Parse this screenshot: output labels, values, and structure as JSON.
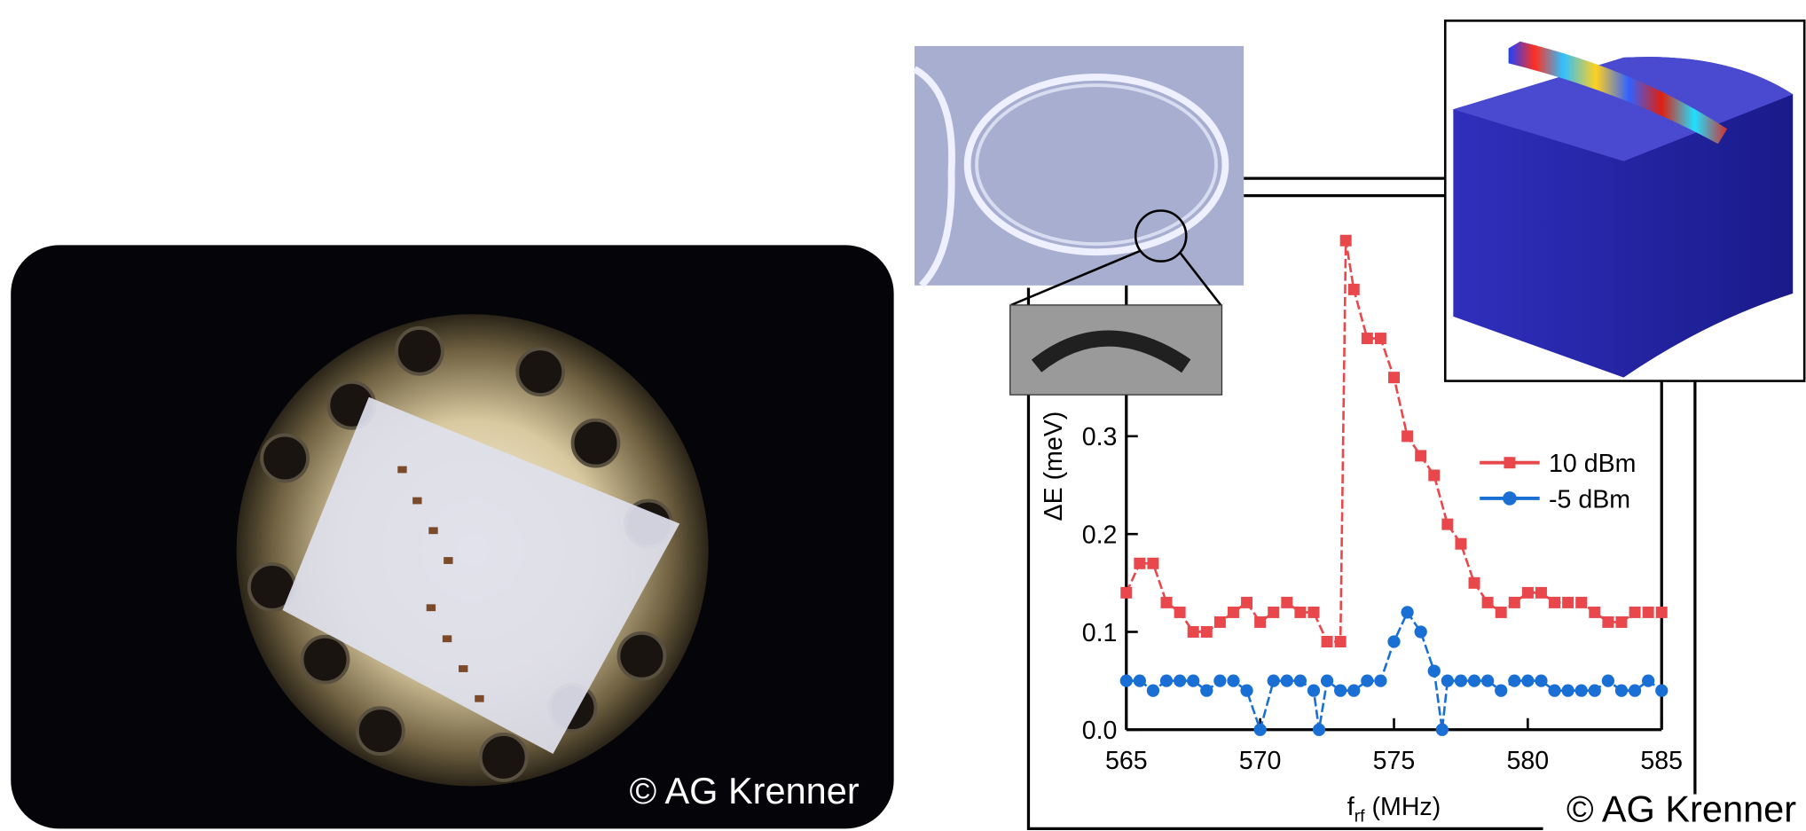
{
  "chart_data": {
    "type": "line",
    "x_label": "f",
    "x_label_subscript": "rf",
    "x_label_unit": "(MHz)",
    "y_label": "ΔE (meV)",
    "xlim": [
      565,
      585
    ],
    "xticks": [
      565,
      570,
      575,
      580,
      585
    ],
    "ylim": [
      0,
      0.55
    ],
    "yticks": [
      {
        "value": 0,
        "label": "0.0"
      },
      0.1,
      0.2,
      0.3
    ],
    "legend": "right",
    "series": [
      {
        "name": "10 dBm",
        "color": "#e8474b",
        "marker": "square",
        "x": [
          565,
          565.5,
          566,
          566.5,
          567,
          567.5,
          568,
          568.5,
          569,
          569.5,
          570,
          570.5,
          571,
          571.5,
          572,
          572.5,
          573,
          573.2,
          573.5,
          574,
          574.5,
          575,
          575.5,
          576,
          576.5,
          577,
          577.5,
          578,
          578.5,
          579,
          579.5,
          580,
          580.5,
          581,
          581.5,
          582,
          582.5,
          583,
          583.5,
          584,
          584.5,
          585
        ],
        "values": [
          0.14,
          0.17,
          0.17,
          0.13,
          0.12,
          0.1,
          0.1,
          0.11,
          0.12,
          0.13,
          0.11,
          0.12,
          0.13,
          0.12,
          0.12,
          0.09,
          0.09,
          0.5,
          0.45,
          0.4,
          0.4,
          0.36,
          0.3,
          0.28,
          0.26,
          0.21,
          0.19,
          0.15,
          0.13,
          0.12,
          0.13,
          0.14,
          0.14,
          0.13,
          0.13,
          0.13,
          0.12,
          0.11,
          0.11,
          0.12,
          0.12,
          0.12
        ]
      },
      {
        "name": "-5 dBm",
        "color": "#1a6fd4",
        "marker": "circle",
        "x": [
          565,
          565.5,
          566,
          566.5,
          567,
          567.5,
          568,
          568.5,
          569,
          569.5,
          570,
          570.5,
          571,
          571.5,
          572,
          572.2,
          572.5,
          573,
          573.5,
          574,
          574.5,
          575,
          575.5,
          576,
          576.5,
          576.8,
          577,
          577.5,
          578,
          578.5,
          579,
          579.5,
          580,
          580.5,
          581,
          581.5,
          582,
          582.5,
          583,
          583.5,
          584,
          584.5,
          585
        ],
        "values": [
          0.05,
          0.05,
          0.04,
          0.05,
          0.05,
          0.05,
          0.04,
          0.05,
          0.05,
          0.04,
          0,
          0.05,
          0.05,
          0.05,
          0.04,
          0,
          0.05,
          0.04,
          0.04,
          0.05,
          0.05,
          0.09,
          0.12,
          0.1,
          0.06,
          0,
          0.05,
          0.05,
          0.05,
          0.05,
          0.04,
          0.05,
          0.05,
          0.05,
          0.04,
          0.04,
          0.04,
          0.04,
          0.05,
          0.04,
          0.04,
          0.05,
          0.04
        ]
      }
    ]
  },
  "photo": {
    "credit": "© AG Krenner"
  },
  "figure": {
    "credit": "© AG Krenner"
  }
}
